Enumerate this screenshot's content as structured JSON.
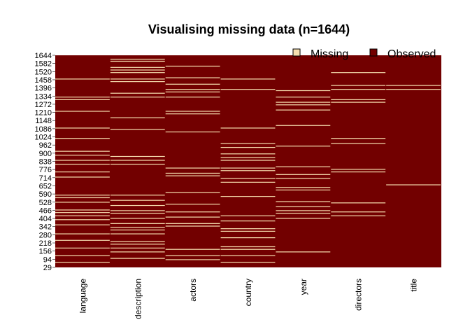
{
  "chart_data": {
    "type": "heatmap",
    "title": "Visualising missing data (n=1644)",
    "n_rows": 1644,
    "columns": [
      "language",
      "description",
      "actors",
      "country",
      "year",
      "directors",
      "title"
    ],
    "legend": {
      "position": "top-right",
      "entries": [
        {
          "label": "Missing",
          "color": "#f7dfb0"
        },
        {
          "label": "Observed",
          "color": "#720000"
        }
      ]
    },
    "y_tick_labels": [
      "1644",
      "1582",
      "1520",
      "1458",
      "1396",
      "1334",
      "1272",
      "1210",
      "1148",
      "1086",
      "1024",
      "962",
      "900",
      "838",
      "776",
      "714",
      "652",
      "590",
      "528",
      "466",
      "404",
      "342",
      "280",
      "218",
      "156",
      "94",
      "29"
    ],
    "missing_rows": {
      "language": [
        1080,
        1460,
        1320,
        1300,
        1210,
        1000,
        900,
        870,
        830,
        800,
        740,
        700,
        560,
        540,
        505,
        445,
        425,
        400,
        370,
        330,
        260,
        210,
        150,
        90,
        40
      ],
      "description": [
        1614,
        1598,
        1550,
        1530,
        1510,
        1460,
        1440,
        1350,
        1320,
        1160,
        1070,
        860,
        830,
        800,
        560,
        520,
        480,
        440,
        420,
        380,
        340,
        310,
        290,
        260,
        200,
        180,
        150,
        120,
        70
      ],
      "actors": [
        1560,
        1470,
        1420,
        1380,
        1360,
        1320,
        1210,
        1190,
        1050,
        770,
        730,
        710,
        580,
        490,
        430,
        390,
        340,
        320,
        140,
        90,
        60
      ],
      "country": [
        1460,
        1380,
        1080,
        960,
        930,
        880,
        850,
        830,
        770,
        750,
        690,
        660,
        550,
        400,
        360,
        300,
        280,
        230,
        160,
        140,
        90,
        40
      ],
      "year": [
        1370,
        1320,
        1280,
        1260,
        1220,
        1100,
        940,
        780,
        720,
        690,
        620,
        600,
        510,
        470,
        440,
        420,
        380,
        120
      ],
      "directors": [
        1510,
        1410,
        1380,
        1300,
        1280,
        1000,
        960,
        760,
        740,
        500,
        430,
        400
      ],
      "title": [
        1410,
        1380,
        640
      ]
    }
  }
}
